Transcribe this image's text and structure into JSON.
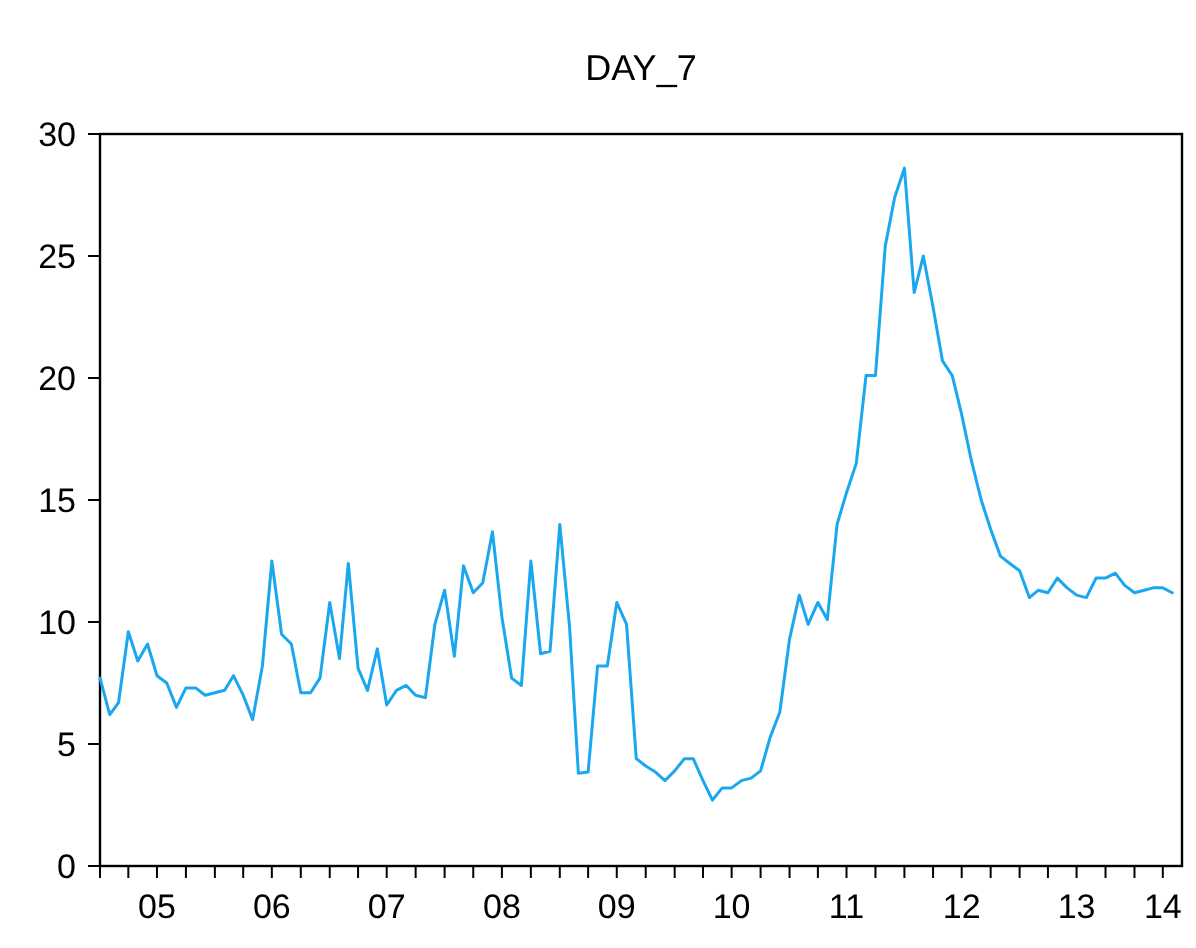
{
  "chart_data": {
    "type": "line",
    "title": "DAY_7",
    "x": [
      "2005-01",
      "2005-02",
      "2005-03",
      "2005-04",
      "2005-05",
      "2005-06",
      "2005-07",
      "2005-08",
      "2005-09",
      "2005-10",
      "2005-11",
      "2005-12",
      "2006-01",
      "2006-02",
      "2006-03",
      "2006-04",
      "2006-05",
      "2006-06",
      "2006-07",
      "2006-08",
      "2006-09",
      "2006-10",
      "2006-11",
      "2006-12",
      "2007-01",
      "2007-02",
      "2007-03",
      "2007-04",
      "2007-05",
      "2007-06",
      "2007-07",
      "2007-08",
      "2007-09",
      "2007-10",
      "2007-11",
      "2007-12",
      "2008-01",
      "2008-02",
      "2008-03",
      "2008-04",
      "2008-05",
      "2008-06",
      "2008-07",
      "2008-08",
      "2008-09",
      "2008-10",
      "2008-11",
      "2008-12",
      "2009-01",
      "2009-02",
      "2009-03",
      "2009-04",
      "2009-05",
      "2009-06",
      "2009-07",
      "2009-08",
      "2009-09",
      "2009-10",
      "2009-11",
      "2009-12",
      "2010-01",
      "2010-02",
      "2010-03",
      "2010-04",
      "2010-05",
      "2010-06",
      "2010-07",
      "2010-08",
      "2010-09",
      "2010-10",
      "2010-11",
      "2010-12",
      "2011-01",
      "2011-02",
      "2011-03",
      "2011-04",
      "2011-05",
      "2011-06",
      "2011-07",
      "2011-08",
      "2011-09",
      "2011-10",
      "2011-11",
      "2011-12",
      "2012-01",
      "2012-02",
      "2012-03",
      "2012-04",
      "2012-05",
      "2012-06",
      "2012-07",
      "2012-08",
      "2012-09",
      "2012-10",
      "2012-11",
      "2012-12",
      "2013-01",
      "2013-02",
      "2013-03",
      "2013-04",
      "2013-05",
      "2013-06",
      "2013-07",
      "2013-08",
      "2013-09",
      "2013-10",
      "2013-11",
      "2013-12",
      "2014-01",
      "2014-02",
      "2014-03",
      "2014-04",
      "2014-05"
    ],
    "series": [
      {
        "color": "#1aa7f0",
        "values": [
          7.7,
          6.2,
          6.7,
          9.6,
          8.4,
          9.1,
          7.8,
          7.5,
          6.5,
          7.3,
          7.3,
          7.0,
          7.1,
          7.2,
          7.8,
          7.0,
          6.0,
          8.2,
          12.5,
          9.5,
          9.1,
          7.1,
          7.1,
          7.7,
          10.8,
          8.5,
          12.4,
          8.1,
          7.2,
          8.9,
          6.6,
          7.2,
          7.4,
          7.0,
          6.9,
          9.9,
          11.3,
          8.6,
          12.3,
          11.2,
          11.6,
          13.7,
          10.2,
          7.7,
          7.4,
          12.5,
          8.7,
          8.8,
          14.0,
          9.8,
          3.8,
          3.85,
          8.2,
          8.2,
          10.8,
          9.9,
          4.4,
          4.1,
          3.85,
          3.5,
          3.9,
          4.4,
          4.4,
          3.5,
          2.7,
          3.2,
          3.2,
          3.5,
          3.6,
          3.9,
          5.3,
          6.3,
          9.3,
          11.1,
          9.9,
          10.8,
          10.1,
          14.0,
          15.3,
          16.5,
          20.1,
          20.1,
          25.4,
          27.4,
          28.6,
          23.5,
          25.0,
          22.9,
          20.7,
          20.1,
          18.5,
          16.6,
          15.0,
          13.8,
          12.7,
          12.4,
          12.1,
          11.0,
          11.3,
          11.2,
          11.8,
          11.4,
          11.1,
          11.0,
          11.8,
          11.8,
          12.0,
          11.5,
          11.2,
          11.3,
          11.4,
          11.4,
          11.2
        ]
      }
    ],
    "xlim": [
      "2005-01",
      "2014-06"
    ],
    "xticks": [
      {
        "value": "2005-01",
        "label": null
      },
      {
        "value": "2005-04",
        "label": null
      },
      {
        "value": "2005-07",
        "label": "05"
      },
      {
        "value": "2005-10",
        "label": null
      },
      {
        "value": "2006-01",
        "label": null
      },
      {
        "value": "2006-04",
        "label": null
      },
      {
        "value": "2006-07",
        "label": "06"
      },
      {
        "value": "2006-10",
        "label": null
      },
      {
        "value": "2007-01",
        "label": null
      },
      {
        "value": "2007-04",
        "label": null
      },
      {
        "value": "2007-07",
        "label": "07"
      },
      {
        "value": "2007-10",
        "label": null
      },
      {
        "value": "2008-01",
        "label": null
      },
      {
        "value": "2008-04",
        "label": null
      },
      {
        "value": "2008-07",
        "label": "08"
      },
      {
        "value": "2008-10",
        "label": null
      },
      {
        "value": "2009-01",
        "label": null
      },
      {
        "value": "2009-04",
        "label": null
      },
      {
        "value": "2009-07",
        "label": "09"
      },
      {
        "value": "2009-10",
        "label": null
      },
      {
        "value": "2010-01",
        "label": null
      },
      {
        "value": "2010-04",
        "label": null
      },
      {
        "value": "2010-07",
        "label": "10"
      },
      {
        "value": "2010-10",
        "label": null
      },
      {
        "value": "2011-01",
        "label": null
      },
      {
        "value": "2011-04",
        "label": null
      },
      {
        "value": "2011-07",
        "label": "11"
      },
      {
        "value": "2011-10",
        "label": null
      },
      {
        "value": "2012-01",
        "label": null
      },
      {
        "value": "2012-04",
        "label": null
      },
      {
        "value": "2012-07",
        "label": "12"
      },
      {
        "value": "2012-10",
        "label": null
      },
      {
        "value": "2013-01",
        "label": null
      },
      {
        "value": "2013-04",
        "label": null
      },
      {
        "value": "2013-07",
        "label": "13"
      },
      {
        "value": "2013-10",
        "label": null
      },
      {
        "value": "2014-01",
        "label": null
      },
      {
        "value": "2014-04",
        "label": "14"
      }
    ],
    "ylim": [
      0,
      30
    ],
    "yticks": [
      0,
      5,
      10,
      15,
      20,
      25,
      30
    ]
  }
}
